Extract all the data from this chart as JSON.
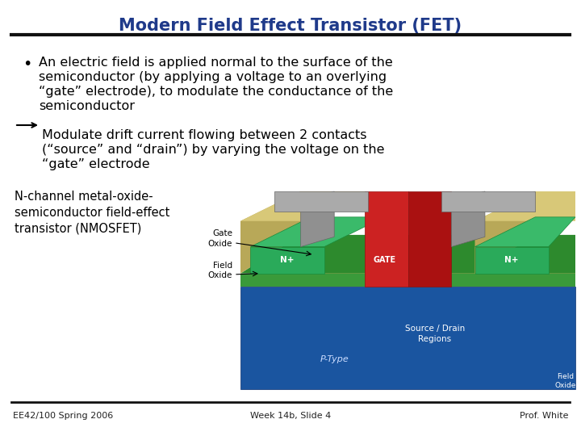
{
  "title": "Modern Field Effect Transistor (FET)",
  "title_color": "#1F3A8A",
  "title_fontsize": 15,
  "bg_color": "#FFFFFF",
  "separator_color": "#111111",
  "bullet_text_line1": "An electric field is applied normal to the surface of the",
  "bullet_text_line2": "semiconductor (by applying a voltage to an overlying",
  "bullet_text_line3": "“gate” electrode), to modulate the conductance of the",
  "bullet_text_line4": "semiconductor",
  "arrow_text_line1": "Modulate drift current flowing between 2 contacts",
  "arrow_text_line2": "(“source” and “drain”) by varying the voltage on the",
  "arrow_text_line3": "“gate” electrode",
  "label_line1": "N-channel metal-oxide-",
  "label_line2": "semiconductor field-effect",
  "label_line3": "transistor (NMOSFET)",
  "footer_left": "EE42/100 Spring 2006",
  "footer_center": "Week 14b, Slide 4",
  "footer_right": "Prof. White",
  "footer_color": "#222222",
  "footer_fontsize": 8,
  "body_fontsize": 11.5,
  "label_fontsize": 10.5
}
